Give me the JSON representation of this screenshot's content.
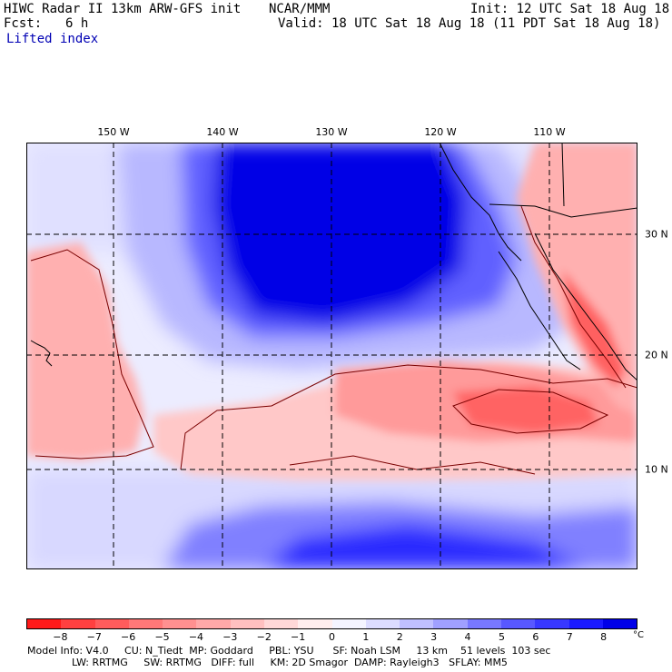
{
  "header": {
    "title_left": "HIWC Radar II 13km ARW-GFS init",
    "center_org": "NCAR/MMM",
    "init": "Init: 12 UTC Sat 18 Aug 18",
    "fcst_label": "Fcst:",
    "fcst_value": "6 h",
    "valid": "Valid: 18 UTC Sat 18 Aug 18 (11 PDT Sat 18 Aug 18)",
    "field": "Lifted index"
  },
  "map": {
    "lon_labels": [
      "150 W",
      "140 W",
      "130 W",
      "120 W",
      "110 W"
    ],
    "lat_labels": [
      "30 N",
      "20 N",
      "10 N"
    ]
  },
  "colorbar": {
    "unit": "°C",
    "tick_labels": [
      "−8",
      "−7",
      "−6",
      "−5",
      "−4",
      "−3",
      "−2",
      "−1",
      "0",
      "1",
      "2",
      "3",
      "4",
      "5",
      "6",
      "7",
      "8"
    ],
    "colors": [
      "#ff1a1a",
      "#ff4040",
      "#ff5c5c",
      "#ff7878",
      "#ff9090",
      "#ffa8a8",
      "#ffc0c0",
      "#ffd8d8",
      "#ffeeee",
      "#f4f4ff",
      "#dcdcff",
      "#c0c0ff",
      "#a0a0ff",
      "#7878ff",
      "#5858ff",
      "#3838ff",
      "#1a1aff",
      "#0000e8"
    ]
  },
  "footer": {
    "line1": "Model Info: V4.0     CU: N_Tiedt  MP: Goddard     PBL: YSU      SF: Noah LSM     13 km    51 levels  103 sec",
    "line2": "              LW: RRTMG     SW: RRTMG   DIFF: full     KM: 2D Smagor  DAMP: Rayleigh3   SFLAY: MM5"
  }
}
